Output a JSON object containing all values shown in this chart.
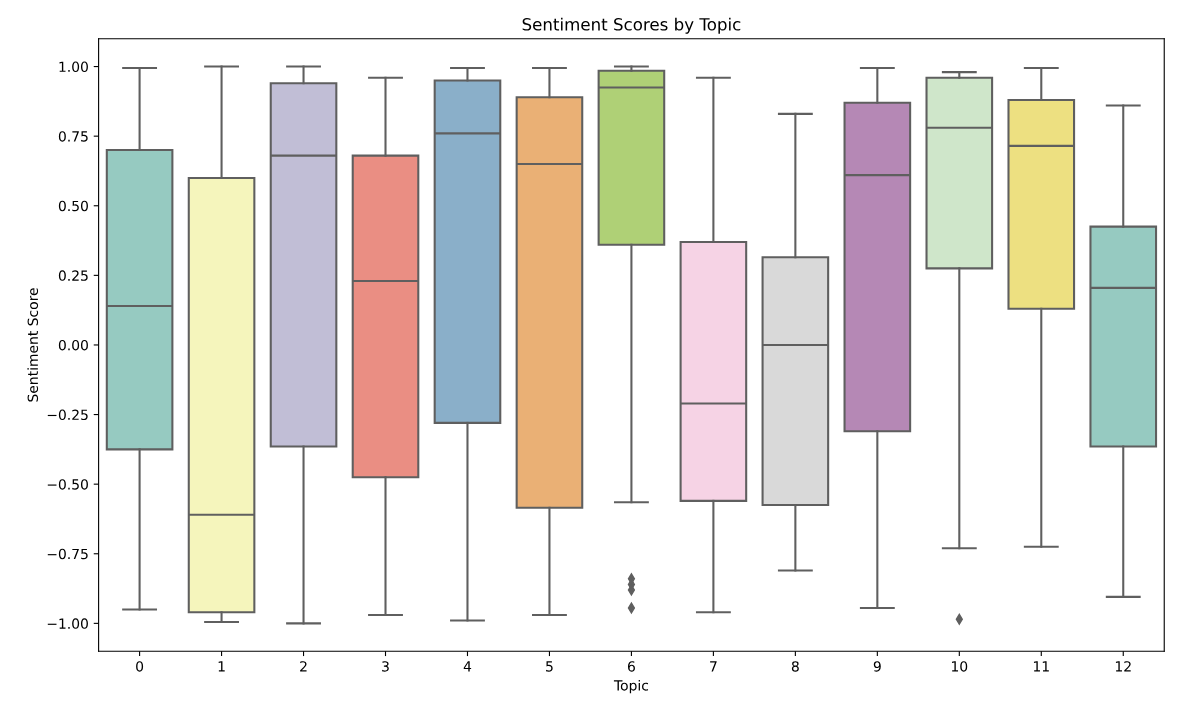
{
  "chart_data": {
    "type": "box",
    "title": "Sentiment Scores by Topic",
    "xlabel": "Topic",
    "ylabel": "Sentiment Score",
    "categories": [
      "0",
      "1",
      "2",
      "3",
      "4",
      "5",
      "6",
      "7",
      "8",
      "9",
      "10",
      "11",
      "12"
    ],
    "boxes": [
      {
        "low": -0.95,
        "q1": -0.375,
        "median": 0.14,
        "q3": 0.7,
        "high": 0.995
      },
      {
        "low": -0.995,
        "q1": -0.96,
        "median": -0.61,
        "q3": 0.6,
        "high": 1.0
      },
      {
        "low": -1.0,
        "q1": -0.365,
        "median": 0.68,
        "q3": 0.94,
        "high": 1.0
      },
      {
        "low": -0.97,
        "q1": -0.475,
        "median": 0.23,
        "q3": 0.68,
        "high": 0.96
      },
      {
        "low": -0.99,
        "q1": -0.28,
        "median": 0.76,
        "q3": 0.95,
        "high": 0.995
      },
      {
        "low": -0.97,
        "q1": -0.585,
        "median": 0.65,
        "q3": 0.89,
        "high": 0.995
      },
      {
        "low": -0.565,
        "q1": 0.36,
        "median": 0.925,
        "q3": 0.985,
        "high": 1.0,
        "outliers": [
          -0.84,
          -0.86,
          -0.88,
          -0.945
        ]
      },
      {
        "low": -0.96,
        "q1": -0.56,
        "median": -0.21,
        "q3": 0.37,
        "high": 0.96
      },
      {
        "low": -0.81,
        "q1": -0.575,
        "median": 0.0,
        "q3": 0.315,
        "high": 0.83
      },
      {
        "low": -0.945,
        "q1": -0.31,
        "median": 0.61,
        "q3": 0.87,
        "high": 0.995
      },
      {
        "low": -0.73,
        "q1": 0.275,
        "median": 0.78,
        "q3": 0.96,
        "high": 0.98,
        "outliers": [
          -0.985
        ]
      },
      {
        "low": -0.725,
        "q1": 0.13,
        "median": 0.715,
        "q3": 0.88,
        "high": 0.995
      },
      {
        "low": -0.905,
        "q1": -0.365,
        "median": 0.205,
        "q3": 0.425,
        "high": 0.86
      }
    ],
    "colors": [
      "#96cac1",
      "#f5f5bc",
      "#c1bed6",
      "#ea8e83",
      "#8aafc9",
      "#eab075",
      "#afd076",
      "#f6d3e5",
      "#d9d9d9",
      "#b588b5",
      "#cfe6ca",
      "#ede081",
      "#96cac1"
    ],
    "marker": "diamond",
    "ylim": [
      -1.1,
      1.1
    ],
    "yticks": [
      {
        "value": -1,
        "label": "−1.00"
      },
      {
        "value": -0.75,
        "label": "−0.75"
      },
      {
        "value": -0.5,
        "label": "−0.50"
      },
      {
        "value": -0.25,
        "label": "−0.25"
      },
      {
        "value": 0,
        "label": "0.00"
      },
      {
        "value": 0.25,
        "label": "0.25"
      },
      {
        "value": 0.5,
        "label": "0.50"
      },
      {
        "value": 0.75,
        "label": "0.75"
      },
      {
        "value": 1,
        "label": "1.00"
      }
    ],
    "grid": false
  }
}
